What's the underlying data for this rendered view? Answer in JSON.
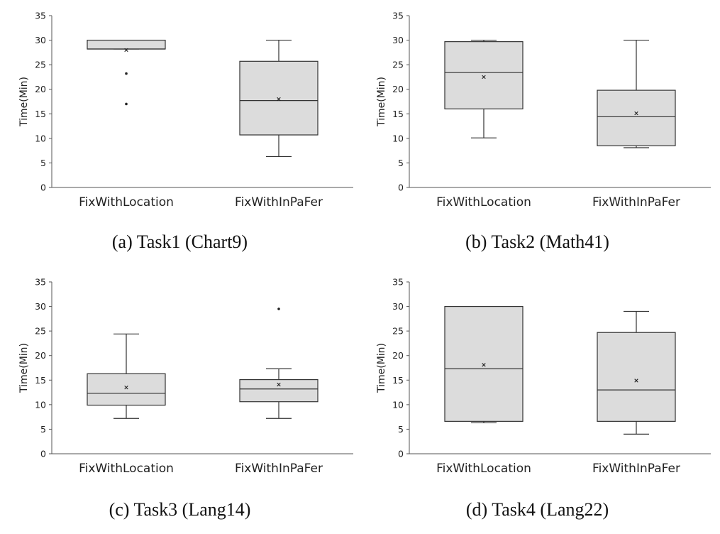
{
  "chart_data": [
    {
      "type": "box",
      "caption": "(a) Task1 (Chart9)",
      "ylabel": "Time(Min)",
      "ylim": [
        0,
        35
      ],
      "yticks": [
        "0",
        "5",
        "10",
        "15",
        "20",
        "25",
        "30",
        "35"
      ],
      "categories": [
        "FixWithLocation",
        "FixWithInPaFer"
      ],
      "boxes": [
        {
          "whisker_low": 28.2,
          "q1": 28.2,
          "median": 28.2,
          "q3": 30,
          "whisker_high": 30,
          "mean": 28,
          "outliers": [
            23.2,
            17
          ]
        },
        {
          "whisker_low": 6.3,
          "q1": 10.7,
          "median": 17.7,
          "q3": 25.7,
          "whisker_high": 30,
          "mean": 18,
          "outliers": []
        }
      ]
    },
    {
      "type": "box",
      "caption": "(b) Task2 (Math41)",
      "ylabel": "Time(Min)",
      "ylim": [
        0,
        35
      ],
      "yticks": [
        "0",
        "5",
        "10",
        "15",
        "20",
        "25",
        "30",
        "35"
      ],
      "categories": [
        "FixWithLocation",
        "FixWithInPaFer"
      ],
      "boxes": [
        {
          "whisker_low": 10.1,
          "q1": 16,
          "median": 23.4,
          "q3": 29.7,
          "whisker_high": 30,
          "mean": 22.5,
          "outliers": []
        },
        {
          "whisker_low": 8.1,
          "q1": 8.5,
          "median": 14.4,
          "q3": 19.8,
          "whisker_high": 30,
          "mean": 15.1,
          "outliers": []
        }
      ]
    },
    {
      "type": "box",
      "caption": "(c) Task3 (Lang14)",
      "ylabel": "Time(Min)",
      "ylim": [
        0,
        35
      ],
      "yticks": [
        "0",
        "5",
        "10",
        "15",
        "20",
        "25",
        "30",
        "35"
      ],
      "categories": [
        "FixWithLocation",
        "FixWithInPaFer"
      ],
      "boxes": [
        {
          "whisker_low": 7.2,
          "q1": 9.9,
          "median": 12.3,
          "q3": 16.3,
          "whisker_high": 24.4,
          "mean": 13.5,
          "outliers": []
        },
        {
          "whisker_low": 7.2,
          "q1": 10.6,
          "median": 13.2,
          "q3": 15.1,
          "whisker_high": 17.3,
          "mean": 14.1,
          "outliers": [
            29.5
          ]
        }
      ]
    },
    {
      "type": "box",
      "caption": "(d) Task4 (Lang22)",
      "ylabel": "Time(Min)",
      "ylim": [
        0,
        35
      ],
      "yticks": [
        "0",
        "5",
        "10",
        "15",
        "20",
        "25",
        "30",
        "35"
      ],
      "categories": [
        "FixWithLocation",
        "FixWithInPaFer"
      ],
      "boxes": [
        {
          "whisker_low": 6.3,
          "q1": 6.6,
          "median": 17.3,
          "q3": 30,
          "whisker_high": 30,
          "mean": 18.1,
          "outliers": []
        },
        {
          "whisker_low": 4,
          "q1": 6.6,
          "median": 13,
          "q3": 24.7,
          "whisker_high": 29,
          "mean": 14.9,
          "outliers": []
        }
      ]
    }
  ],
  "colors": {
    "box_fill": "#dcdcdc",
    "stroke": "#333333",
    "axis": "#555555"
  }
}
